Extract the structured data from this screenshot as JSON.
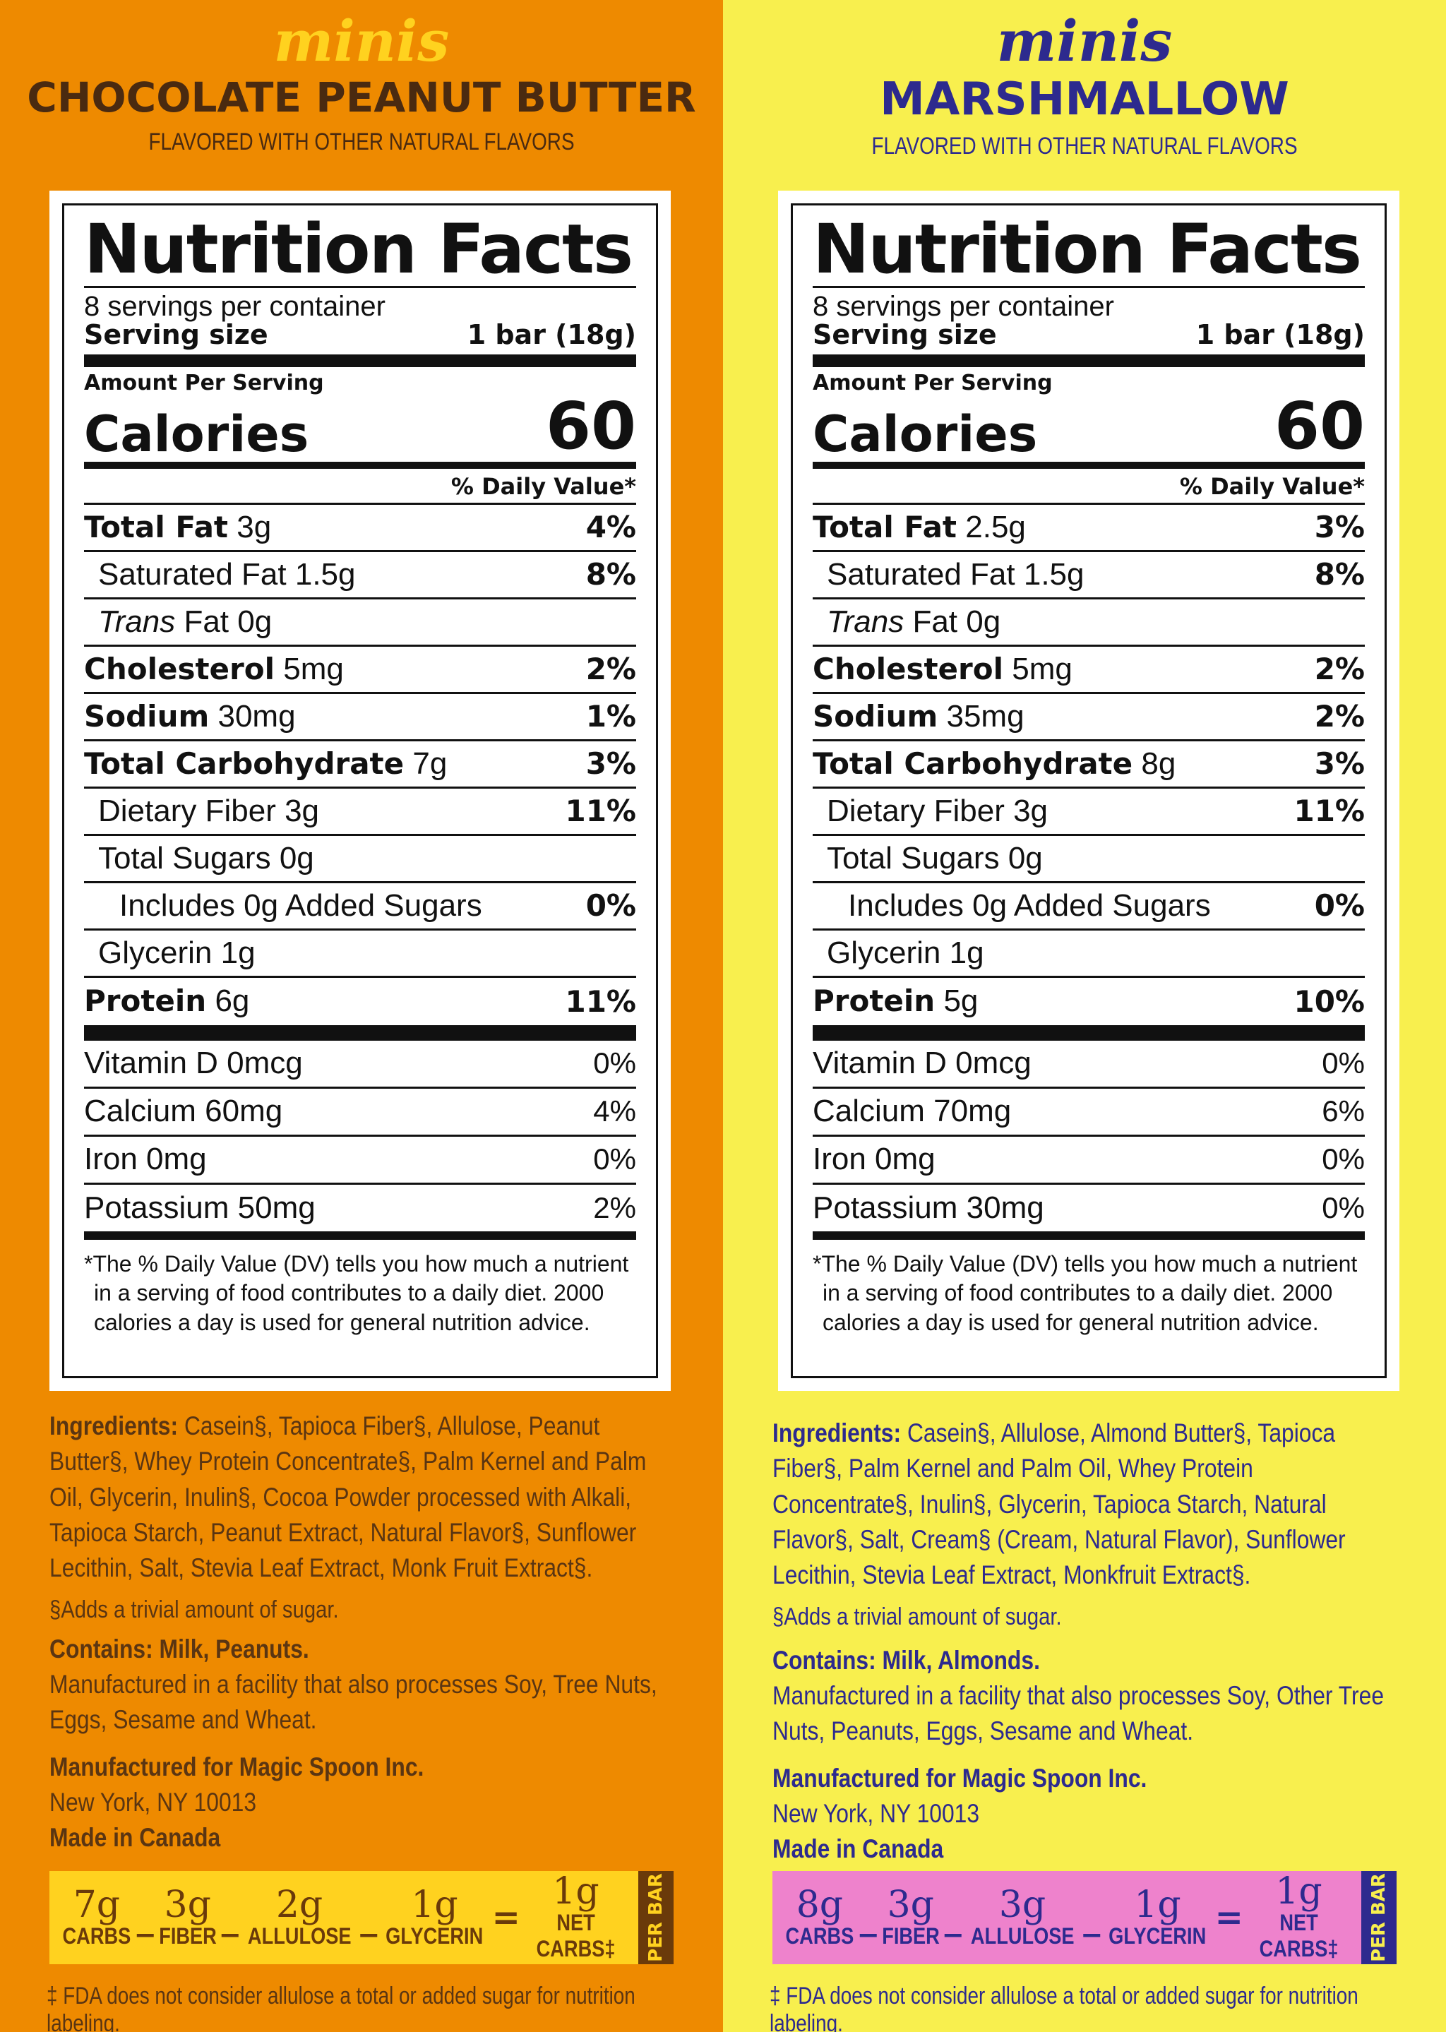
{
  "left": {
    "minis": "minis",
    "flavor": "CHOCOLATE PEANUT BUTTER",
    "flavored": "FLAVORED WITH OTHER NATURAL FLAVORS",
    "nf": {
      "title": "Nutrition Facts",
      "servings": "8 servings per container",
      "serving_size_label": "Serving size",
      "serving_size_value": "1 bar (18g)",
      "amount_per_serving": "Amount Per Serving",
      "calories_label": "Calories",
      "calories_value": "60",
      "dv_header": "% Daily Value*",
      "rows": [
        {
          "name": "Total Fat",
          "amount": "3g",
          "pct": "4%"
        },
        {
          "name": "Saturated Fat",
          "amount": "1.5g",
          "pct": "8%"
        },
        {
          "name": "Trans",
          "amount": "Fat 0g",
          "pct": ""
        },
        {
          "name": "Cholesterol",
          "amount": "5mg",
          "pct": "2%"
        },
        {
          "name": "Sodium",
          "amount": "30mg",
          "pct": "1%"
        },
        {
          "name": "Total Carbohydrate",
          "amount": "7g",
          "pct": "3%"
        },
        {
          "name": "Dietary Fiber",
          "amount": "3g",
          "pct": "11%"
        },
        {
          "name": "Total Sugars",
          "amount": "0g",
          "pct": ""
        },
        {
          "name": "Includes 0g Added Sugars",
          "amount": "",
          "pct": "0%"
        },
        {
          "name": "Glycerin",
          "amount": "1g",
          "pct": ""
        },
        {
          "name": "Protein",
          "amount": "6g",
          "pct": "11%"
        }
      ],
      "vitamins": [
        {
          "name": "Vitamin D 0mcg",
          "pct": "0%"
        },
        {
          "name": "Calcium 60mg",
          "pct": "4%"
        },
        {
          "name": "Iron 0mg",
          "pct": "0%"
        },
        {
          "name": "Potassium 50mg",
          "pct": "2%"
        }
      ],
      "footnote_1": "*The % Daily Value (DV) tells you how much a nutrient",
      "footnote_2": "in a serving of food contributes to a daily diet. 2000",
      "footnote_3": "calories a day is used for general nutrition advice."
    },
    "ingredients_label": "Ingredients:",
    "ingredients": "Casein§, Tapioca Fiber§, Allulose, Peanut Butter§, Whey Protein Concentrate§, Palm Kernel and Palm Oil, Glycerin, Inulin§, Cocoa Powder processed with Alkali, Tapioca Starch, Peanut Extract, Natural Flavor§, Sunflower Lecithin, Salt, Stevia Leaf Extract, Monk Fruit Extract§.",
    "trivial": "§Adds a trivial amount of sugar.",
    "contains": "Contains: Milk, Peanuts.",
    "facility": "Manufactured in a facility that also processes Soy, Tree Nuts, Eggs, Sesame and Wheat.",
    "manufactured_for": "Manufactured for Magic Spoon Inc.",
    "address": "New York, NY 10013",
    "made_in": "Made in Canada",
    "carbs": [
      {
        "v": "7g",
        "l": "CARBS"
      },
      {
        "v": "3g",
        "l": "FIBER"
      },
      {
        "v": "2g",
        "l": "ALLULOSE"
      },
      {
        "v": "1g",
        "l": "GLYCERIN"
      },
      {
        "v": "1g",
        "l": "NET CARBS‡"
      }
    ],
    "ops": [
      "_",
      "_",
      "_",
      "="
    ],
    "per_bar": "PER BAR",
    "fda": "‡ FDA does not consider allulose a total or added sugar for nutrition labeling."
  },
  "right": {
    "minis": "minis",
    "flavor": "MARSHMALLOW",
    "flavored": "FLAVORED WITH OTHER NATURAL FLAVORS",
    "nf": {
      "title": "Nutrition Facts",
      "servings": "8 servings per container",
      "serving_size_label": "Serving size",
      "serving_size_value": "1 bar (18g)",
      "amount_per_serving": "Amount Per Serving",
      "calories_label": "Calories",
      "calories_value": "60",
      "dv_header": "% Daily Value*",
      "rows": [
        {
          "name": "Total Fat",
          "amount": "2.5g",
          "pct": "3%"
        },
        {
          "name": "Saturated Fat",
          "amount": "1.5g",
          "pct": "8%"
        },
        {
          "name": "Trans",
          "amount": "Fat 0g",
          "pct": ""
        },
        {
          "name": "Cholesterol",
          "amount": "5mg",
          "pct": "2%"
        },
        {
          "name": "Sodium",
          "amount": "35mg",
          "pct": "2%"
        },
        {
          "name": "Total Carbohydrate",
          "amount": "8g",
          "pct": "3%"
        },
        {
          "name": "Dietary Fiber",
          "amount": "3g",
          "pct": "11%"
        },
        {
          "name": "Total Sugars",
          "amount": "0g",
          "pct": ""
        },
        {
          "name": "Includes 0g Added Sugars",
          "amount": "",
          "pct": "0%"
        },
        {
          "name": "Glycerin",
          "amount": "1g",
          "pct": ""
        },
        {
          "name": "Protein",
          "amount": "5g",
          "pct": "10%"
        }
      ],
      "vitamins": [
        {
          "name": "Vitamin D 0mcg",
          "pct": "0%"
        },
        {
          "name": "Calcium 70mg",
          "pct": "6%"
        },
        {
          "name": "Iron 0mg",
          "pct": "0%"
        },
        {
          "name": "Potassium 30mg",
          "pct": "0%"
        }
      ],
      "footnote_1": "*The % Daily Value (DV) tells you how much a nutrient",
      "footnote_2": "in a serving of food contributes to a daily diet. 2000",
      "footnote_3": "calories a day is used for general nutrition advice."
    },
    "ingredients_label": "Ingredients:",
    "ingredients": "Casein§, Allulose, Almond Butter§, Tapioca Fiber§, Palm Kernel and Palm Oil, Whey Protein Concentrate§, Inulin§, Glycerin, Tapioca Starch, Natural Flavor§, Salt, Cream§ (Cream, Natural Flavor), Sunflower Lecithin, Stevia Leaf Extract, Monkfruit Extract§.",
    "trivial": "§Adds a trivial amount of sugar.",
    "contains": "Contains: Milk, Almonds.",
    "facility": "Manufactured in a facility that also processes Soy, Other Tree Nuts, Peanuts, Eggs, Sesame and Wheat.",
    "manufactured_for": "Manufactured for Magic Spoon Inc.",
    "address": "New York, NY 10013",
    "made_in": "Made in Canada",
    "carbs": [
      {
        "v": "8g",
        "l": "CARBS"
      },
      {
        "v": "3g",
        "l": "FIBER"
      },
      {
        "v": "3g",
        "l": "ALLULOSE"
      },
      {
        "v": "1g",
        "l": "GLYCERIN"
      },
      {
        "v": "1g",
        "l": "NET CARBS‡"
      }
    ],
    "ops": [
      "_",
      "_",
      "_",
      "="
    ],
    "per_bar": "PER BAR",
    "fda": "‡ FDA does not consider allulose a total or added sugar for nutrition labeling."
  }
}
